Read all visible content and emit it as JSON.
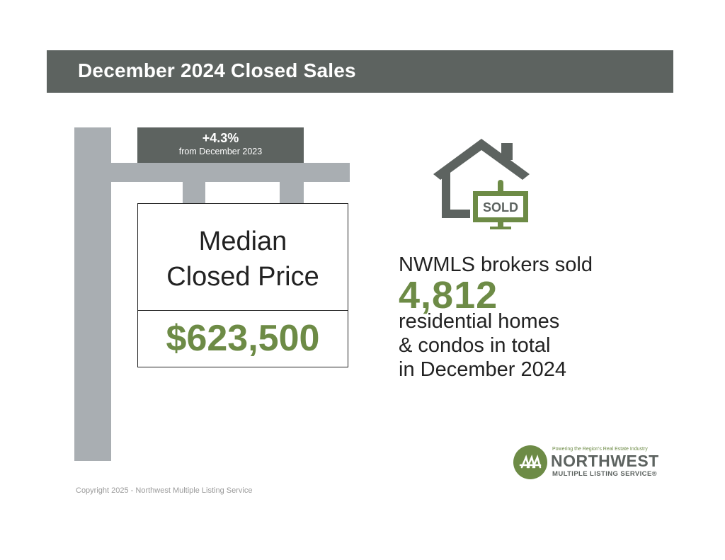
{
  "header": {
    "title": "December 2024 Closed Sales"
  },
  "change": {
    "value": "+4.3%",
    "label": "from December 2023"
  },
  "sign": {
    "label_line1": "Median",
    "label_line2": "Closed Price",
    "value": "$623,500"
  },
  "house": {
    "sign_text": "SOLD",
    "icon": "house-sold-icon"
  },
  "stat": {
    "intro": "NWMLS brokers sold",
    "number": "4,812",
    "line1": "residential homes",
    "line2": "& condos in total",
    "line3": "in December 2024"
  },
  "logo": {
    "tagline": "Powering the Region's Real Estate Industry",
    "name": "NORTHWEST",
    "sub": "MULTIPLE LISTING SERVICE®"
  },
  "footer": {
    "copyright": "Copyright 2025 - Northwest Multiple Listing Service"
  },
  "colors": {
    "accent_green": "#6d8b46",
    "dark_gray": "#5d6360",
    "post_gray": "#a9aeb2"
  }
}
